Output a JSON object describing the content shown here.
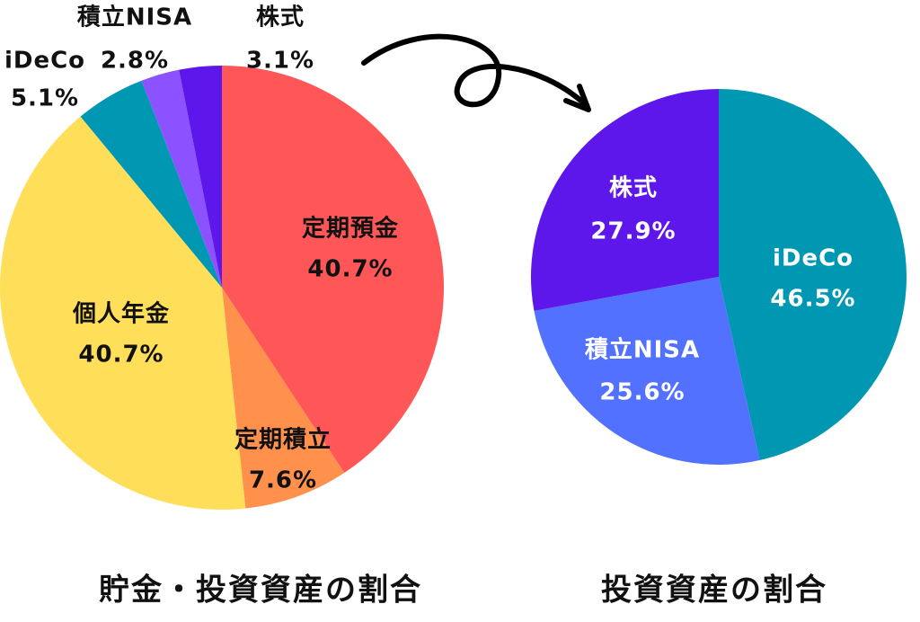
{
  "chart_data": [
    {
      "type": "pie",
      "title": "貯金・投資資産の割合",
      "categories": [
        "定期預金",
        "定期積立",
        "個人年金",
        "iDeCo",
        "積立NISA",
        "株式"
      ],
      "values": [
        40.7,
        7.6,
        40.7,
        5.1,
        2.8,
        3.1
      ],
      "value_labels": [
        "40.7%",
        "7.6%",
        "40.7%",
        "5.1%",
        "2.8%",
        "3.1%"
      ],
      "colors": [
        "#ff5757",
        "#ff914d",
        "#ffde59",
        "#0097b2",
        "#8c52ff",
        "#5e17eb"
      ],
      "label_color": "#111111"
    },
    {
      "type": "pie",
      "title": "投資資産の割合",
      "categories": [
        "iDeCo",
        "積立NISA",
        "株式"
      ],
      "values": [
        46.5,
        25.6,
        27.9
      ],
      "value_labels": [
        "46.5%",
        "25.6%",
        "27.9%"
      ],
      "colors": [
        "#0097b2",
        "#5271ff",
        "#5e17eb"
      ],
      "label_color": "#ffffff"
    }
  ]
}
